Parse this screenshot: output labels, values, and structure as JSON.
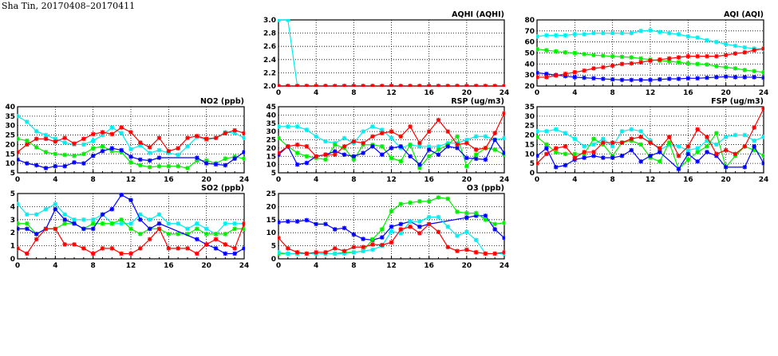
{
  "page": {
    "title": "Sha Tin, 20170408–20170411"
  },
  "series_colors": {
    "red": "#ff0000",
    "green": "#00ee00",
    "cyan": "#00eeee",
    "blue": "#0000ff"
  },
  "chart_data": [
    {
      "id": "aqhi",
      "type": "line",
      "title": "AQHI (AQHI)",
      "xlim": [
        0,
        24
      ],
      "xticks": [
        0,
        4,
        8,
        12,
        16,
        20,
        24
      ],
      "ylim": [
        2.0,
        3.0
      ],
      "yticks": [
        "2.0",
        "2.2",
        "2.4",
        "2.6",
        "2.8",
        "3.0"
      ],
      "grid": true,
      "series": [
        {
          "color": "green",
          "values": [
            2,
            2,
            2,
            2,
            2,
            2,
            2,
            2,
            2,
            2,
            2,
            2,
            2,
            2,
            2,
            2,
            2,
            2,
            2,
            2,
            2,
            2,
            2,
            2,
            2
          ]
        },
        {
          "color": "blue",
          "values": [
            2,
            2,
            2,
            2,
            2,
            2,
            2,
            2,
            2,
            2,
            2,
            2,
            2,
            2,
            2,
            2,
            2,
            2,
            2,
            2,
            2,
            2,
            2,
            2,
            2
          ]
        },
        {
          "color": "cyan",
          "values": [
            3,
            3,
            2,
            2,
            2,
            2,
            2,
            2,
            2,
            2,
            2,
            2,
            2,
            2,
            2,
            2,
            2,
            2,
            2,
            2,
            2,
            2,
            2,
            2,
            2
          ]
        },
        {
          "color": "red",
          "values": [
            2,
            2,
            2,
            2,
            2,
            2,
            2,
            2,
            2,
            2,
            2,
            2,
            2,
            2,
            2,
            2,
            2,
            2,
            2,
            2,
            2,
            2,
            2,
            2,
            2
          ]
        }
      ]
    },
    {
      "id": "aqi",
      "type": "line",
      "title": "AQI (AQI)",
      "xlim": [
        0,
        24
      ],
      "xticks": [
        0,
        4,
        8,
        12,
        16,
        20,
        24
      ],
      "ylim": [
        20,
        80
      ],
      "yticks": [
        "20",
        "30",
        "40",
        "50",
        "60",
        "70",
        "80"
      ],
      "grid": true,
      "series": [
        {
          "color": "cyan",
          "values": [
            65,
            66,
            66,
            66,
            67,
            67,
            68,
            68,
            68,
            68,
            68,
            70,
            70.5,
            69,
            68,
            67,
            65,
            64,
            61.5,
            60,
            58,
            56.5,
            55,
            54,
            53.5
          ]
        },
        {
          "color": "green",
          "values": [
            53.5,
            52.5,
            51.5,
            50.5,
            50,
            49,
            48,
            47.5,
            47,
            46.5,
            46,
            45,
            44,
            43,
            42.5,
            41.5,
            40.5,
            40,
            39.5,
            38,
            37,
            36,
            34.5,
            33.5,
            32.5
          ]
        },
        {
          "color": "blue",
          "values": [
            32,
            31,
            30,
            29,
            28,
            27.5,
            27,
            26.5,
            26,
            25.5,
            25.5,
            25.5,
            25.5,
            26,
            26.5,
            26.5,
            27,
            27,
            27.5,
            28,
            28.5,
            28,
            28,
            28,
            27.5
          ]
        },
        {
          "color": "red",
          "values": [
            28,
            28,
            29.5,
            31,
            32.5,
            34,
            36,
            37,
            38.5,
            40,
            40.5,
            41.5,
            43,
            44,
            45,
            46,
            47,
            47,
            47,
            47,
            48,
            49.5,
            50.5,
            52.5,
            54
          ]
        }
      ]
    },
    {
      "id": "no2",
      "type": "line",
      "title": "NO2 (ppb)",
      "xlim": [
        0,
        24
      ],
      "xticks": [
        0,
        4,
        8,
        12,
        16,
        20,
        24
      ],
      "ylim": [
        5,
        40
      ],
      "yticks": [
        "5",
        "10",
        "15",
        "20",
        "25",
        "30",
        "35",
        "40"
      ],
      "grid": true,
      "series": [
        {
          "color": "cyan",
          "values": [
            35,
            32,
            27,
            25,
            23,
            21,
            20,
            20,
            22,
            25,
            29,
            26,
            17.5,
            19.5,
            15.5,
            17,
            15.5,
            14.5,
            19,
            24,
            22.5,
            23.5,
            26.5,
            26,
            23.5
          ]
        },
        {
          "color": "green",
          "values": [
            23,
            22,
            18.5,
            16,
            15,
            14.5,
            14,
            15,
            18,
            19,
            16.5,
            16,
            10.5,
            9,
            8,
            8.5,
            8.5,
            8.5,
            7.5,
            11.5,
            11.5,
            10,
            12.5,
            13.5,
            12.5
          ]
        },
        {
          "color": "blue",
          "values": [
            12,
            10,
            9,
            7.5,
            8.5,
            8.5,
            10.5,
            10,
            14,
            16.5,
            18,
            17,
            13.5,
            12,
            11.5,
            13,
            null,
            null,
            null,
            13,
            10,
            9.5,
            9,
            12.5,
            16
          ]
        },
        {
          "color": "red",
          "values": [
            16,
            20,
            23,
            23,
            21.5,
            23.5,
            20.5,
            23,
            25.5,
            26.5,
            25.5,
            29,
            26.5,
            21,
            18.5,
            23.5,
            16.5,
            18,
            23.5,
            24.5,
            23,
            23.5,
            26,
            27.5,
            26
          ]
        }
      ]
    },
    {
      "id": "rsp",
      "type": "line",
      "title": "RSP (ug/m3)",
      "xlim": [
        0,
        24
      ],
      "xticks": [
        0,
        4,
        8,
        12,
        16,
        20,
        24
      ],
      "ylim": [
        5,
        45
      ],
      "yticks": [
        "5",
        "10",
        "15",
        "20",
        "25",
        "30",
        "35",
        "40",
        "45"
      ],
      "grid": true,
      "series": [
        {
          "color": "cyan",
          "values": [
            33,
            33,
            33,
            31,
            27,
            24,
            23,
            26,
            23,
            30,
            33,
            31,
            26,
            20,
            22,
            21,
            21,
            21,
            23,
            23,
            25,
            27,
            27,
            25,
            26
          ]
        },
        {
          "color": "green",
          "values": [
            26,
            21,
            17,
            15,
            14,
            13,
            22,
            20,
            13,
            22,
            22,
            21,
            14,
            12,
            22,
            8,
            15,
            19,
            22,
            27,
            9,
            16,
            20,
            19,
            16
          ]
        },
        {
          "color": "blue",
          "values": [
            16,
            21,
            10,
            11,
            15,
            16,
            18,
            16,
            15,
            17,
            21,
            16,
            20,
            21,
            15,
            10,
            19,
            16,
            21,
            20,
            14,
            13.5,
            13,
            25,
            17
          ]
        },
        {
          "color": "red",
          "values": [
            17,
            21,
            22,
            21,
            15,
            16,
            16,
            21,
            24,
            23,
            27,
            29,
            30,
            27,
            33,
            23,
            30,
            37,
            30,
            22,
            23,
            19,
            20,
            29,
            41
          ]
        }
      ]
    },
    {
      "id": "fsp",
      "type": "line",
      "title": "FSP (ug/m3)",
      "xlim": [
        0,
        24
      ],
      "xticks": [
        0,
        4,
        8,
        12,
        16,
        20,
        24
      ],
      "ylim": [
        0,
        35
      ],
      "yticks": [
        "0",
        "5",
        "10",
        "15",
        "20",
        "25",
        "30",
        "35"
      ],
      "grid": true,
      "series": [
        {
          "color": "cyan",
          "values": [
            22,
            22,
            23,
            21,
            18,
            14,
            15,
            18,
            14,
            22,
            23,
            22,
            17,
            12,
            15,
            14,
            12,
            13,
            17,
            15,
            19,
            20,
            20,
            17,
            19
          ]
        },
        {
          "color": "green",
          "values": [
            19,
            15,
            11,
            10,
            10,
            10,
            18,
            15,
            9,
            16,
            17,
            15,
            8,
            6,
            16,
            2,
            7,
            11,
            14,
            21,
            3,
            9,
            14,
            12,
            9
          ]
        },
        {
          "color": "blue",
          "values": [
            9,
            13,
            3,
            4,
            7,
            8,
            9,
            8,
            8,
            9,
            12,
            6,
            9,
            11,
            null,
            2,
            10,
            6,
            11,
            9,
            3,
            null,
            3,
            14,
            5
          ]
        },
        {
          "color": "red",
          "values": [
            5,
            10,
            13,
            14,
            8,
            11,
            11,
            16,
            16,
            16,
            18,
            19,
            16,
            13,
            19,
            9,
            14,
            23,
            19,
            10,
            12,
            10,
            14,
            24,
            34
          ]
        }
      ]
    },
    {
      "id": "so2",
      "type": "line",
      "title": "SO2 (ppb)",
      "xlim": [
        0,
        24
      ],
      "xticks": [
        0,
        4,
        8,
        12,
        16,
        20,
        24
      ],
      "ylim": [
        0,
        5
      ],
      "yticks": [
        "0",
        "1",
        "2",
        "3",
        "4",
        "5"
      ],
      "grid": true,
      "series": [
        {
          "color": "cyan",
          "values": [
            4.2,
            3.4,
            3.4,
            3.8,
            4.2,
            3.4,
            3.0,
            3.0,
            3.0,
            3.4,
            2.7,
            2.7,
            2.7,
            3.4,
            3.0,
            3.4,
            2.7,
            2.7,
            2.3,
            2.7,
            2.3,
            1.9,
            2.7,
            2.7,
            2.7
          ]
        },
        {
          "color": "green",
          "values": [
            2.7,
            2.7,
            1.9,
            2.3,
            2.3,
            2.7,
            2.7,
            2.3,
            2.7,
            2.7,
            2.7,
            3.0,
            2.3,
            1.9,
            2.3,
            2.3,
            1.9,
            1.9,
            1.9,
            2.3,
            1.9,
            1.9,
            1.9,
            2.3,
            2.3
          ]
        },
        {
          "color": "blue",
          "values": [
            2.3,
            2.3,
            1.9,
            2.3,
            3.8,
            3.0,
            2.7,
            2.3,
            2.3,
            3.4,
            3.8,
            4.9,
            4.5,
            3.0,
            2.3,
            2.7,
            null,
            null,
            null,
            1.5,
            1.1,
            0.8,
            0.4,
            0.4,
            0.8
          ]
        },
        {
          "color": "red",
          "values": [
            0.8,
            0.4,
            1.5,
            2.3,
            2.3,
            1.1,
            1.1,
            0.8,
            0.4,
            0.8,
            0.8,
            0.4,
            0.4,
            0.8,
            1.5,
            2.3,
            0.8,
            0.8,
            0.8,
            0.4,
            1.1,
            1.5,
            1.1,
            0.8,
            2.7
          ]
        }
      ]
    },
    {
      "id": "o3",
      "type": "line",
      "title": "O3 (ppb)",
      "xlim": [
        0,
        24
      ],
      "xticks": [
        0,
        4,
        8,
        12,
        16,
        20,
        24
      ],
      "ylim": [
        0,
        25
      ],
      "yticks": [
        "0",
        "5",
        "10",
        "15",
        "20",
        "25"
      ],
      "grid": true,
      "series": [
        {
          "color": "blue",
          "values": [
            14,
            14.3,
            14.3,
            14.8,
            13.3,
            13.3,
            11.3,
            11.8,
            9.3,
            7.6,
            7.2,
            8.2,
            12.3,
            13.3,
            14.3,
            12.3,
            13.3,
            null,
            null,
            null,
            15.8,
            16.5,
            16.5,
            11.3,
            8
          ]
        },
        {
          "color": "green",
          "values": [
            2,
            2,
            2,
            2,
            2,
            2,
            2,
            2.5,
            2.5,
            3,
            7.5,
            11.3,
            18.3,
            21,
            21.5,
            22,
            22,
            23.5,
            23,
            18,
            17.5,
            17.5,
            15,
            13.3,
            13.8
          ]
        },
        {
          "color": "cyan",
          "values": [
            2.5,
            2,
            2,
            2,
            2,
            2,
            2,
            2,
            2.5,
            3,
            3.5,
            5,
            10.5,
            9.8,
            14.3,
            14.3,
            16,
            16,
            12.3,
            8.8,
            10.3,
            7.2,
            2,
            2,
            2
          ]
        },
        {
          "color": "red",
          "values": [
            8,
            4,
            2.5,
            2,
            2.5,
            2.5,
            4,
            3,
            4.5,
            4.5,
            5.5,
            5.3,
            6.3,
            11.3,
            12.3,
            9.8,
            13.3,
            10.3,
            4.5,
            3,
            3.5,
            2.5,
            2,
            2,
            2.5
          ]
        }
      ]
    }
  ]
}
